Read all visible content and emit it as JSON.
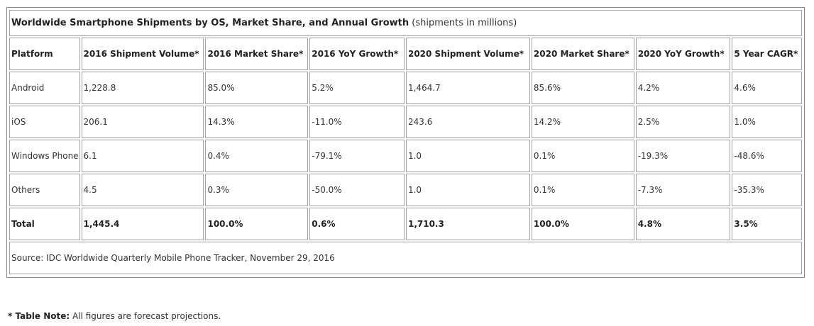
{
  "table": {
    "title_bold": "Worldwide Smartphone Shipments by OS, Market Share, and Annual Growth",
    "title_note": "(shipments in millions)",
    "headers": [
      "Platform",
      "2016 Shipment Volume*",
      "2016 Market Share*",
      "2016 YoY Growth*",
      "2020 Shipment Volume*",
      "2020 Market Share*",
      "2020 YoY Growth*",
      "5 Year CAGR*"
    ],
    "rows": [
      [
        "Android",
        "1,228.8",
        "85.0%",
        "5.2%",
        "1,464.7",
        "85.6%",
        "4.2%",
        "4.6%"
      ],
      [
        "iOS",
        "206.1",
        "14.3%",
        "-11.0%",
        "243.6",
        "14.2%",
        "2.5%",
        "1.0%"
      ],
      [
        "Windows Phone",
        "6.1",
        "0.4%",
        "-79.1%",
        "1.0",
        "0.1%",
        "-19.3%",
        "-48.6%"
      ],
      [
        "Others",
        "4.5",
        "0.3%",
        "-50.0%",
        "1.0",
        "0.1%",
        "-7.3%",
        "-35.3%"
      ]
    ],
    "total": [
      "Total",
      "1,445.4",
      "100.0%",
      "0.6%",
      "1,710.3",
      "100.0%",
      "4.8%",
      "3.5%"
    ],
    "source": "Source: IDC Worldwide Quarterly Mobile Phone Tracker, November 29, 2016"
  },
  "note": {
    "label": "* Table Note:",
    "text": "All figures are forecast projections."
  }
}
